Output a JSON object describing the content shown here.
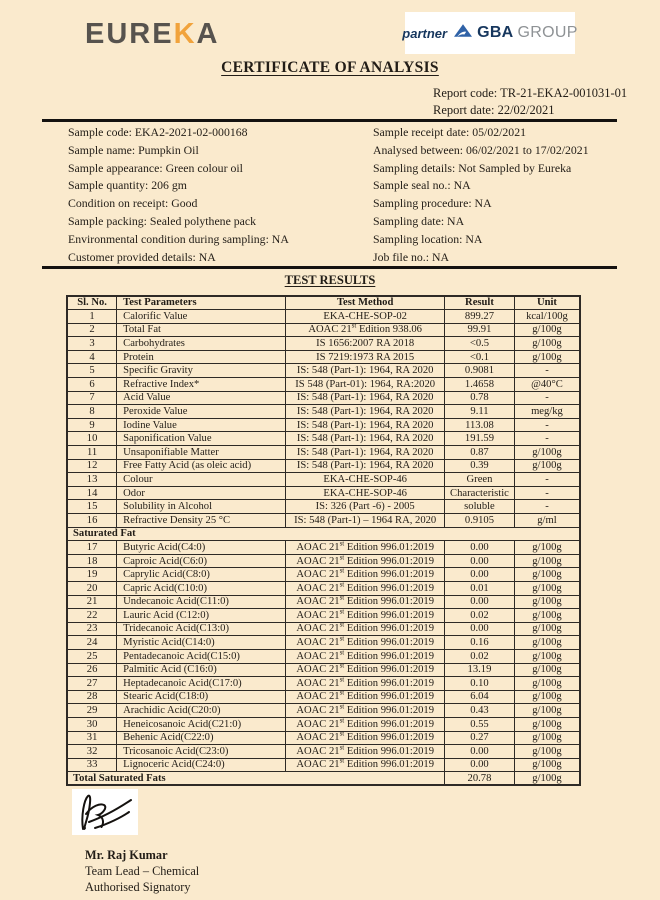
{
  "header": {
    "eureka": {
      "part1": "EURE",
      "part2": "K",
      "part3": "A"
    },
    "partner": {
      "word": "partner",
      "brand_bold": "GBA",
      "brand_light": "GROUP"
    },
    "title": "CERTIFICATE OF ANALYSIS",
    "report_code": "Report code: TR-21-EKA2-001031-01",
    "report_date": "Report date: 22/02/2021"
  },
  "sample_info": {
    "left": [
      "Sample code: EKA2-2021-02-000168",
      "Sample name: Pumpkin Oil",
      "Sample appearance: Green colour oil",
      "Sample quantity: 206 gm",
      "Condition on receipt: Good",
      "Sample packing: Sealed polythene pack",
      "Environmental condition during sampling: NA",
      "Customer provided details: NA"
    ],
    "right": [
      "Sample receipt date: 05/02/2021",
      "Analysed between: 06/02/2021 to 17/02/2021",
      "Sampling details: Not Sampled by Eureka",
      "Sample seal no.: NA",
      "Sampling procedure: NA",
      "Sampling date: NA",
      "Sampling location: NA",
      "Job file no.: NA"
    ]
  },
  "results": {
    "heading": "TEST RESULTS",
    "columns": [
      "Sl. No.",
      "Test Parameters",
      "Test Method",
      "Result",
      "Unit"
    ],
    "rows_general": [
      [
        "1",
        "Calorific Value",
        "EKA-CHE-SOP-02",
        "899.27",
        "kcal/100g"
      ],
      [
        "2",
        "Total Fat",
        "AOAC 21st Edition 938.06",
        "99.91",
        "g/100g"
      ],
      [
        "3",
        "Carbohydrates",
        "IS 1656:2007 RA 2018",
        "<0.5",
        "g/100g"
      ],
      [
        "4",
        "Protein",
        "IS 7219:1973 RA 2015",
        "<0.1",
        "g/100g"
      ],
      [
        "5",
        "Specific Gravity",
        "IS: 548 (Part-1): 1964, RA 2020",
        "0.9081",
        "-"
      ],
      [
        "6",
        "Refractive Index*",
        "IS 548 (Part-01): 1964, RA:2020",
        "1.4658",
        "@40°C"
      ],
      [
        "7",
        "Acid Value",
        "IS: 548 (Part-1): 1964, RA 2020",
        "0.78",
        "-"
      ],
      [
        "8",
        "Peroxide Value",
        "IS: 548 (Part-1): 1964, RA 2020",
        "9.11",
        "meg/kg"
      ],
      [
        "9",
        "Iodine Value",
        "IS: 548 (Part-1): 1964, RA 2020",
        "113.08",
        "-"
      ],
      [
        "10",
        "Saponification Value",
        "IS: 548 (Part-1): 1964, RA 2020",
        "191.59",
        "-"
      ],
      [
        "11",
        "Unsaponifiable Matter",
        "IS: 548 (Part-1): 1964, RA 2020",
        "0.87",
        "g/100g"
      ],
      [
        "12",
        "Free Fatty Acid (as oleic acid)",
        "IS: 548 (Part-1): 1964, RA 2020",
        "0.39",
        "g/100g"
      ],
      [
        "13",
        "Colour",
        "EKA-CHE-SOP-46",
        "Green",
        "-"
      ],
      [
        "14",
        "Odor",
        "EKA-CHE-SOP-46",
        "Characteristic",
        "-"
      ],
      [
        "15",
        "Solubility in Alcohol",
        "IS: 326 (Part -6) - 2005",
        "soluble",
        "-"
      ],
      [
        "16",
        "Refractive Density 25 °C",
        "IS: 548 (Part-1) – 1964 RA, 2020",
        "0.9105",
        "g/ml"
      ]
    ],
    "saturated_header": "Saturated Fat",
    "rows_saturated": [
      [
        "17",
        "Butyric Acid(C4:0)",
        "AOAC 21st Edition 996.01:2019",
        "0.00",
        "g/100g"
      ],
      [
        "18",
        "Caproic Acid(C6:0)",
        "AOAC 21st Edition 996.01:2019",
        "0.00",
        "g/100g"
      ],
      [
        "19",
        "Caprylic Acid(C8:0)",
        "AOAC 21st Edition 996.01:2019",
        "0.00",
        "g/100g"
      ],
      [
        "20",
        "Capric Acid(C10:0)",
        "AOAC 21st Edition 996.01:2019",
        "0.01",
        "g/100g"
      ],
      [
        "21",
        "Undecanoic Acid(C11:0)",
        "AOAC 21st Edition 996.01:2019",
        "0.00",
        "g/100g"
      ],
      [
        "22",
        "Lauric Acid (C12:0)",
        "AOAC 21st Edition 996.01:2019",
        "0.02",
        "g/100g"
      ],
      [
        "23",
        "Tridecanoic Acid(C13:0)",
        "AOAC 21st Edition 996.01:2019",
        "0.00",
        "g/100g"
      ],
      [
        "24",
        "Myristic Acid(C14:0)",
        "AOAC 21st Edition 996.01:2019",
        "0.16",
        "g/100g"
      ],
      [
        "25",
        "Pentadecanoic Acid(C15:0)",
        "AOAC 21st Edition 996.01:2019",
        "0.02",
        "g/100g"
      ],
      [
        "26",
        "Palmitic Acid (C16:0)",
        "AOAC 21st Edition 996.01:2019",
        "13.19",
        "g/100g"
      ],
      [
        "27",
        "Heptadecanoic Acid(C17:0)",
        "AOAC 21st Edition 996.01:2019",
        "0.10",
        "g/100g"
      ],
      [
        "28",
        "Stearic Acid(C18:0)",
        "AOAC 21st Edition 996.01:2019",
        "6.04",
        "g/100g"
      ],
      [
        "29",
        "Arachidic Acid(C20:0)",
        "AOAC 21st Edition 996.01:2019",
        "0.43",
        "g/100g"
      ],
      [
        "30",
        "Heneicosanoic Acid(C21:0)",
        "AOAC 21st Edition 996.01:2019",
        "0.55",
        "g/100g"
      ],
      [
        "31",
        "Behenic Acid(C22:0)",
        "AOAC 21st Edition 996.01:2019",
        "0.27",
        "g/100g"
      ],
      [
        "32",
        "Tricosanoic Acid(C23:0)",
        "AOAC 21st Edition 996.01:2019",
        "0.00",
        "g/100g"
      ],
      [
        "33",
        "Lignoceric Acid(C24:0)",
        "AOAC 21st Edition 996.01:2019",
        "0.00",
        "g/100g"
      ]
    ],
    "total": [
      "Total Saturated Fats",
      "20.78",
      "g/100g"
    ]
  },
  "footer": {
    "name": "Mr. Raj Kumar",
    "role": "Team Lead – Chemical",
    "title": "Authorised Signatory"
  },
  "colors": {
    "page_bg": "#faeacd",
    "accent_orange": "#f1a33c",
    "logo_gray": "#57534e",
    "brand_navy": "#17375e",
    "triangle_blue": "#2f62a7",
    "group_gray": "#8e9295",
    "rule_black": "#141210"
  }
}
